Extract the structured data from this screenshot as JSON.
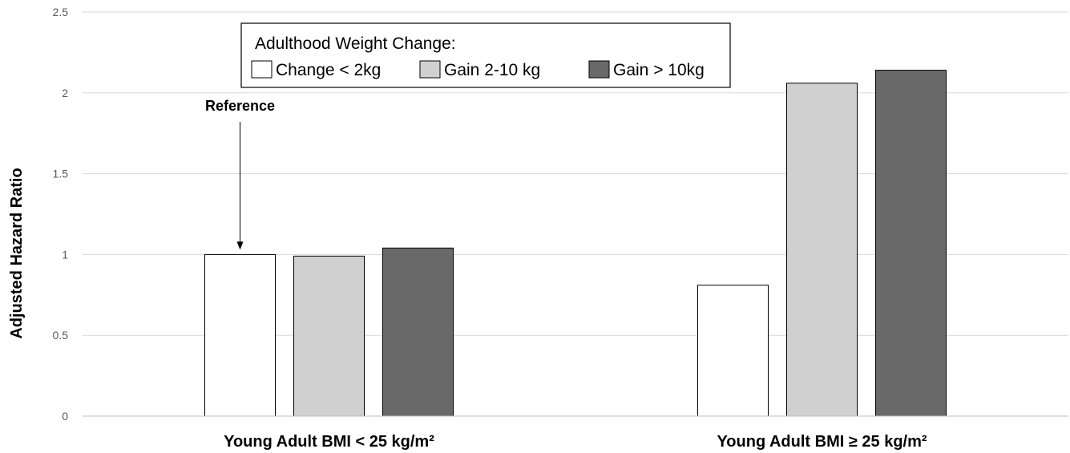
{
  "chart_data": {
    "type": "bar",
    "categories": [
      "Young Adult BMI < 25 kg/m²",
      "Young Adult BMI ≥ 25 kg/m²"
    ],
    "series": [
      {
        "name": "Change < 2kg",
        "values": [
          1.0,
          0.81
        ],
        "color": "#ffffff"
      },
      {
        "name": "Gain 2-10 kg",
        "values": [
          0.99,
          2.06
        ],
        "color": "#d0d0d0"
      },
      {
        "name": "Gain > 10kg",
        "values": [
          1.04,
          2.14
        ],
        "color": "#696969"
      }
    ],
    "legend_title": "Adulthood Weight Change:",
    "legend_position": "top-left",
    "ylabel": "Adjusted Hazard Ratio",
    "xlabel": "",
    "ylim": [
      0,
      2.5
    ],
    "yticks": [
      "0",
      "0.5",
      "1",
      "1.5",
      "2",
      "2.5"
    ],
    "ytick_values": [
      0,
      0.5,
      1,
      1.5,
      2,
      2.5
    ],
    "grid": true,
    "annotation": {
      "text": "Reference",
      "series_index": 0,
      "category_index": 0
    }
  }
}
